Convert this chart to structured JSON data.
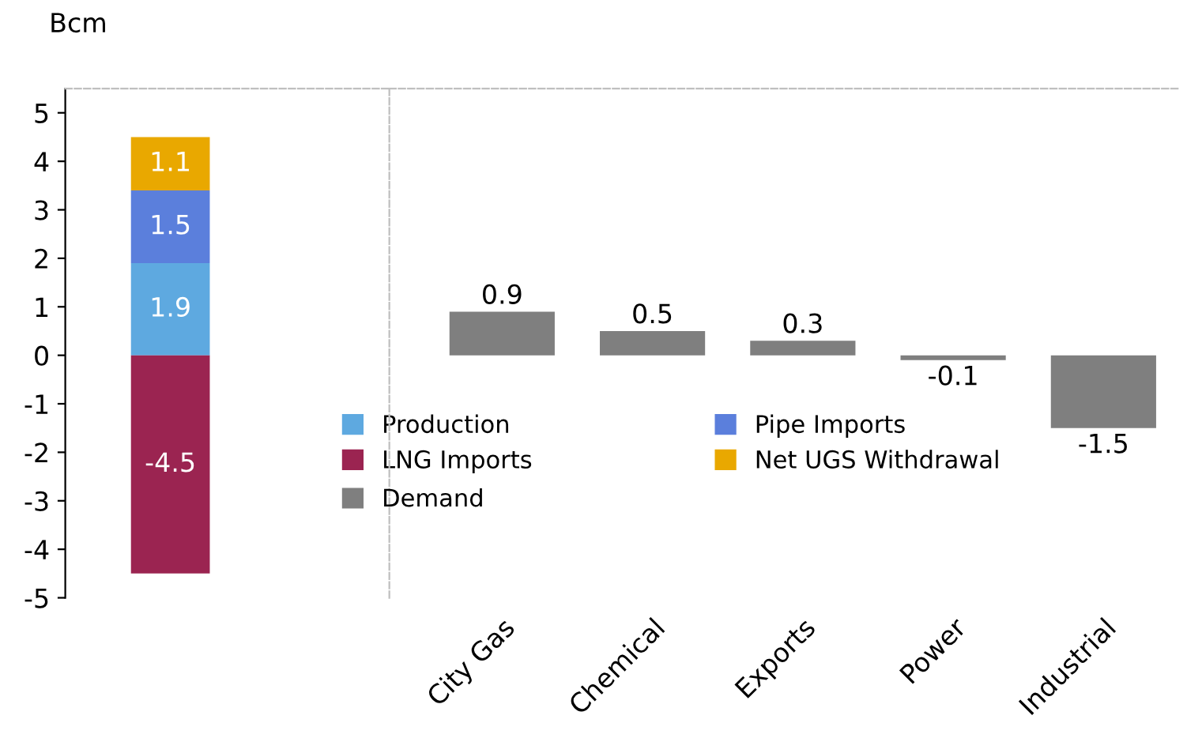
{
  "chart_data": [
    {
      "type": "bar",
      "stacked": true,
      "ylabel": "Bcm",
      "categories": [
        null
      ],
      "series": [
        {
          "name": "Production",
          "color": "#5ea9e0",
          "values": [
            1.9
          ]
        },
        {
          "name": "Pipe Imports",
          "color": "#5b7fdc",
          "values": [
            1.5
          ]
        },
        {
          "name": "Net UGS Withdrawal",
          "color": "#e9a800",
          "values": [
            1.1
          ]
        },
        {
          "name": "LNG Imports",
          "color": "#9b2451",
          "values": [
            -4.5
          ]
        }
      ],
      "ylim": [
        -5,
        5.5
      ],
      "yticks": [
        -5,
        -4,
        -3,
        -2,
        -1,
        0,
        1,
        2,
        3,
        4,
        5
      ],
      "data_labels": true,
      "legend": "bottom right",
      "grid": false
    },
    {
      "type": "bar",
      "categories": [
        "City Gas",
        "Chemical",
        "Exports",
        "Power",
        "Industrial"
      ],
      "series": [
        {
          "name": "Demand",
          "color": "#7f7f7f",
          "values": [
            0.9,
            0.5,
            0.3,
            -0.1,
            -1.5
          ]
        }
      ],
      "ylim": [
        -5,
        5.5
      ],
      "tick_labels": "x",
      "data_labels": true,
      "legend": "bottom left",
      "grid": false
    }
  ]
}
